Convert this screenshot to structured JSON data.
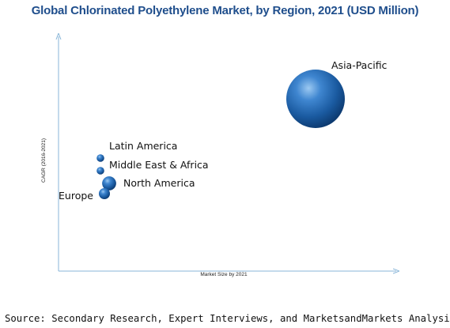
{
  "chart_data": {
    "type": "bubble",
    "title": "Global Chlorinated Polyethylene Market, by Region, 2021 (USD Million)",
    "xlabel": "Market Size by 2021",
    "ylabel": "CAGR (2016-2021)",
    "axis_ticks": "none",
    "grid": false,
    "legend": "none",
    "points": [
      {
        "label": "Asia-Pacific",
        "size": 1.0,
        "color": "#1f5fa6"
      },
      {
        "label": "Latin America",
        "size": 0.13,
        "color": "#1f5fa6"
      },
      {
        "label": "Middle East & Africa",
        "size": 0.13,
        "color": "#1f5fa6"
      },
      {
        "label": "North America",
        "size": 0.24,
        "color": "#1f5fa6"
      },
      {
        "label": "Europe",
        "size": 0.19,
        "color": "#1f5fa6"
      }
    ]
  },
  "source": "Source: Secondary Research, Expert Interviews, and MarketsandMarkets Analysis"
}
